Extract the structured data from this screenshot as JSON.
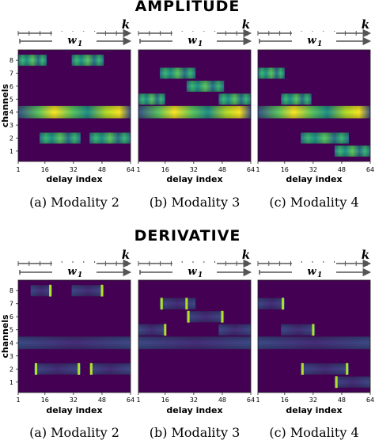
{
  "sections": [
    {
      "title": "AMPLITUDE",
      "kind": "amplitude",
      "panels": [
        {
          "caption": "(a) Modality 2",
          "k_label": "k",
          "w_label": "w",
          "w_subscript": "1",
          "xlabel": "delay index",
          "ylabel": "channels",
          "xticks": [
            1,
            16,
            32,
            48,
            64
          ],
          "yticks": [
            1,
            2,
            3,
            4,
            5,
            6,
            7,
            8
          ],
          "segments": [
            {
              "channel": 8,
              "start": 1,
              "end": 17
            },
            {
              "channel": 8,
              "start": 31,
              "end": 49
            },
            {
              "channel": 4,
              "start": 1,
              "end": 64
            },
            {
              "channel": 2,
              "start": 13,
              "end": 36
            },
            {
              "channel": 2,
              "start": 41,
              "end": 64
            }
          ]
        },
        {
          "caption": "(b) Modality 3",
          "k_label": "k",
          "w_label": "w",
          "w_subscript": "1",
          "xlabel": "delay index",
          "ylabel": "",
          "xticks": [
            1,
            16,
            32,
            48,
            64
          ],
          "yticks": [],
          "segments": [
            {
              "channel": 7,
              "start": 13,
              "end": 33
            },
            {
              "channel": 6,
              "start": 28,
              "end": 49
            },
            {
              "channel": 5,
              "start": 1,
              "end": 16
            },
            {
              "channel": 5,
              "start": 46,
              "end": 64
            },
            {
              "channel": 4,
              "start": 1,
              "end": 64
            }
          ]
        },
        {
          "caption": "(c) Modality 4",
          "k_label": "k",
          "w_label": "w",
          "w_subscript": "1",
          "xlabel": "delay index",
          "ylabel": "",
          "xticks": [
            1,
            16,
            32,
            48,
            64
          ],
          "yticks": [],
          "segments": [
            {
              "channel": 7,
              "start": 1,
              "end": 16
            },
            {
              "channel": 5,
              "start": 14,
              "end": 31
            },
            {
              "channel": 4,
              "start": 1,
              "end": 64
            },
            {
              "channel": 2,
              "start": 25,
              "end": 52
            },
            {
              "channel": 1,
              "start": 44,
              "end": 64
            }
          ]
        }
      ]
    },
    {
      "title": "DERIVATIVE",
      "kind": "derivative",
      "panels": [
        {
          "caption": "(a) Modality 2",
          "k_label": "k",
          "w_label": "w",
          "w_subscript": "1",
          "xlabel": "delay index",
          "ylabel": "channels",
          "xticks": [
            1,
            16,
            32,
            48,
            64
          ],
          "yticks": [
            1,
            2,
            3,
            4,
            5,
            6,
            7,
            8
          ],
          "segments": [
            {
              "channel": 8,
              "start": 8,
              "end": 20
            },
            {
              "channel": 8,
              "start": 31,
              "end": 49
            },
            {
              "channel": 4,
              "start": 1,
              "end": 64
            },
            {
              "channel": 2,
              "start": 10,
              "end": 36
            },
            {
              "channel": 2,
              "start": 41,
              "end": 64
            }
          ],
          "spikes": [
            {
              "channel": 8,
              "x": 19
            },
            {
              "channel": 8,
              "x": 48
            },
            {
              "channel": 2,
              "x": 11
            },
            {
              "channel": 2,
              "x": 35
            },
            {
              "channel": 2,
              "x": 42
            }
          ]
        },
        {
          "caption": "(b) Modality 3",
          "k_label": "k",
          "w_label": "w",
          "w_subscript": "1",
          "xlabel": "delay index",
          "ylabel": "",
          "xticks": [
            1,
            16,
            32,
            48,
            64
          ],
          "yticks": [],
          "segments": [
            {
              "channel": 7,
              "start": 13,
              "end": 33
            },
            {
              "channel": 6,
              "start": 28,
              "end": 49
            },
            {
              "channel": 5,
              "start": 1,
              "end": 16
            },
            {
              "channel": 5,
              "start": 46,
              "end": 64
            },
            {
              "channel": 4,
              "start": 1,
              "end": 64
            }
          ],
          "spikes": [
            {
              "channel": 7,
              "x": 14
            },
            {
              "channel": 7,
              "x": 28
            },
            {
              "channel": 6,
              "x": 29
            },
            {
              "channel": 6,
              "x": 48
            },
            {
              "channel": 5,
              "x": 16
            }
          ]
        },
        {
          "caption": "(c) Modality 4",
          "k_label": "k",
          "w_label": "w",
          "w_subscript": "1",
          "xlabel": "delay index",
          "ylabel": "",
          "xticks": [
            1,
            16,
            32,
            48,
            64
          ],
          "yticks": [],
          "segments": [
            {
              "channel": 7,
              "start": 1,
              "end": 16
            },
            {
              "channel": 5,
              "start": 14,
              "end": 33
            },
            {
              "channel": 4,
              "start": 1,
              "end": 64
            },
            {
              "channel": 2,
              "start": 25,
              "end": 52
            },
            {
              "channel": 1,
              "start": 44,
              "end": 64
            }
          ],
          "spikes": [
            {
              "channel": 7,
              "x": 15
            },
            {
              "channel": 5,
              "x": 32
            },
            {
              "channel": 2,
              "x": 26
            },
            {
              "channel": 2,
              "x": 51
            },
            {
              "channel": 1,
              "x": 45
            }
          ]
        }
      ]
    }
  ],
  "chart_data": [
    {
      "type": "heatmap",
      "title": "AMPLITUDE",
      "subtitle": "(a) Modality 2",
      "xlabel": "delay index",
      "ylabel": "channels",
      "xlim": [
        1,
        64
      ],
      "ylim": [
        0.5,
        8.5
      ],
      "colormap": "viridis"
    },
    {
      "type": "heatmap",
      "title": "AMPLITUDE",
      "subtitle": "(b) Modality 3",
      "xlabel": "delay index",
      "ylabel": "",
      "xlim": [
        1,
        64
      ],
      "ylim": [
        0.5,
        8.5
      ],
      "colormap": "viridis"
    },
    {
      "type": "heatmap",
      "title": "AMPLITUDE",
      "subtitle": "(c) Modality 4",
      "xlabel": "delay index",
      "ylabel": "",
      "xlim": [
        1,
        64
      ],
      "ylim": [
        0.5,
        8.5
      ],
      "colormap": "viridis"
    },
    {
      "type": "heatmap",
      "title": "DERIVATIVE",
      "subtitle": "(a) Modality 2",
      "xlabel": "delay index",
      "ylabel": "channels",
      "xlim": [
        1,
        64
      ],
      "ylim": [
        0.5,
        8.5
      ],
      "colormap": "viridis"
    },
    {
      "type": "heatmap",
      "title": "DERIVATIVE",
      "subtitle": "(b) Modality 3",
      "xlabel": "delay index",
      "ylabel": "",
      "xlim": [
        1,
        64
      ],
      "ylim": [
        0.5,
        8.5
      ],
      "colormap": "viridis"
    },
    {
      "type": "heatmap",
      "title": "DERIVATIVE",
      "subtitle": "(c) Modality 4",
      "xlabel": "delay index",
      "ylabel": "",
      "xlim": [
        1,
        64
      ],
      "ylim": [
        0.5,
        8.5
      ],
      "colormap": "viridis"
    }
  ],
  "colors": {
    "background": "#440154",
    "amp_low": "#2c728e",
    "amp_mid": "#3cbb75",
    "amp_high": "#fde725",
    "deriv_band": "#3b528b",
    "deriv_spike": "#b5de2b",
    "arrow": "#555555"
  }
}
